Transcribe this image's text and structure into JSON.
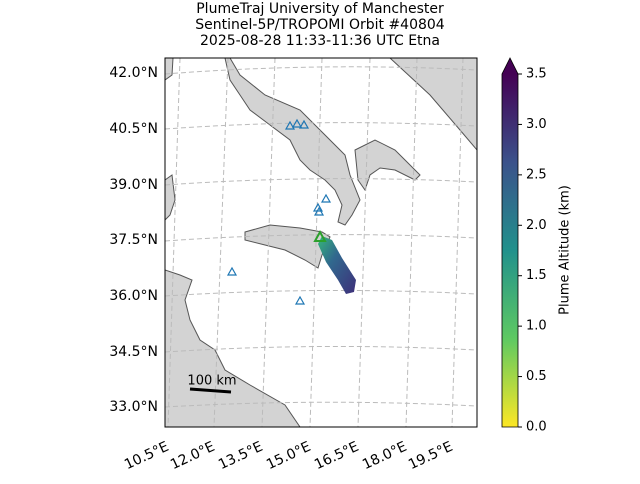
{
  "title": [
    "PlumeTraj    University of Manchester",
    "Sentinel-5P/TROPOMI Orbit #40804",
    "2025-08-28    11:33-11:36 UTC    Etna"
  ],
  "map": {
    "lat_labels": [
      "42.0°N",
      "40.5°N",
      "39.0°N",
      "37.5°N",
      "36.0°N",
      "34.5°N",
      "33.0°N"
    ],
    "lon_labels": [
      "10.5°E",
      "12.0°E",
      "13.5°E",
      "15.0°E",
      "16.5°E",
      "18.0°E",
      "19.5°E"
    ],
    "scale_bar": "100 km"
  },
  "colorbar": {
    "label": "Plume Altitude (km)",
    "lim": [
      0,
      3.5
    ],
    "ticks": [
      {
        "value": 0,
        "label": "0.0"
      },
      0.5,
      {
        "value": 1,
        "label": "1.0"
      },
      1.5,
      {
        "value": 2,
        "label": "2.0"
      },
      2.5,
      {
        "value": 3,
        "label": "3.0"
      },
      3.5
    ]
  }
}
